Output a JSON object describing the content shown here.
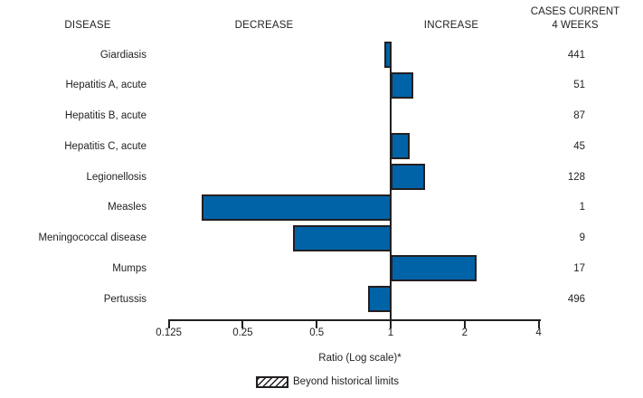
{
  "header": {
    "disease": "DISEASE",
    "decrease": "DECREASE",
    "increase": "INCREASE",
    "cases_line1": "CASES CURRENT",
    "cases_line2": "4 WEEKS"
  },
  "chart_data": {
    "type": "bar",
    "orientation": "horizontal",
    "scale": "log2",
    "title": "",
    "xlabel": "Ratio (Log scale)*",
    "axis": {
      "ticks": [
        "0.125",
        "0.25",
        "0.5",
        "1",
        "2",
        "4"
      ],
      "range": [
        0.125,
        4
      ],
      "baseline_ratio": 1
    },
    "legend": {
      "label": "Beyond historical limits",
      "swatch": "hatched"
    },
    "rows": [
      {
        "disease": "Giardiasis",
        "ratio": 0.94,
        "cases": "441",
        "beyond_limits": false
      },
      {
        "disease": "Hepatitis A, acute",
        "ratio": 1.23,
        "cases": "51",
        "beyond_limits": false
      },
      {
        "disease": "Hepatitis B, acute",
        "ratio": 1.0,
        "cases": "87",
        "beyond_limits": false
      },
      {
        "disease": "Hepatitis C, acute",
        "ratio": 1.18,
        "cases": "45",
        "beyond_limits": false
      },
      {
        "disease": "Legionellosis",
        "ratio": 1.37,
        "cases": "128",
        "beyond_limits": false
      },
      {
        "disease": "Measles",
        "ratio": 0.17,
        "cases": "1",
        "beyond_limits": false
      },
      {
        "disease": "Meningococcal disease",
        "ratio": 0.4,
        "cases": "9",
        "beyond_limits": false
      },
      {
        "disease": "Mumps",
        "ratio": 2.22,
        "cases": "17",
        "beyond_limits": false
      },
      {
        "disease": "Pertussis",
        "ratio": 0.81,
        "cases": "496",
        "beyond_limits": false
      }
    ],
    "colors": {
      "bar_fill": "#0063a7",
      "bar_border": "#231f20",
      "text": "#231f20"
    }
  }
}
